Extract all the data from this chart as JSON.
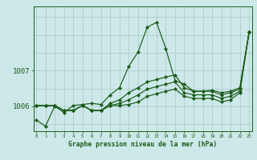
{
  "background_color": "#cde8e8",
  "grid_color": "#a8c8c8",
  "line_color": "#1a5c1a",
  "marker_color": "#1a5c1a",
  "xlabel": "Graphe pression niveau de la mer (hPa)",
  "yticks": [
    1006,
    1007
  ],
  "xlim": [
    -0.3,
    23.3
  ],
  "ylim": [
    1005.3,
    1008.8
  ],
  "series": [
    [
      1005.62,
      1005.44,
      1006.0,
      1005.82,
      1006.02,
      1006.05,
      1006.08,
      1006.05,
      1006.32,
      1006.52,
      1007.12,
      1007.52,
      1008.22,
      1008.35,
      1007.62,
      1006.72,
      1006.62,
      1006.42,
      1006.42,
      1006.45,
      1006.38,
      1006.42,
      1006.52,
      1008.08
    ],
    [
      1006.02,
      1006.02,
      1006.02,
      1005.88,
      1005.88,
      1006.02,
      1005.88,
      1005.88,
      1006.08,
      1006.18,
      1006.38,
      1006.52,
      1006.68,
      1006.75,
      1006.82,
      1006.88,
      1006.52,
      1006.42,
      1006.42,
      1006.42,
      1006.32,
      1006.38,
      1006.48,
      1008.08
    ],
    [
      1006.02,
      1006.02,
      1006.02,
      1005.88,
      1005.88,
      1006.02,
      1005.88,
      1005.88,
      1006.02,
      1006.08,
      1006.18,
      1006.32,
      1006.48,
      1006.55,
      1006.62,
      1006.68,
      1006.38,
      1006.32,
      1006.32,
      1006.32,
      1006.22,
      1006.28,
      1006.42,
      1008.08
    ],
    [
      1006.02,
      1006.02,
      1006.02,
      1005.88,
      1005.88,
      1006.02,
      1005.88,
      1005.88,
      1006.02,
      1006.02,
      1006.05,
      1006.12,
      1006.28,
      1006.35,
      1006.42,
      1006.48,
      1006.28,
      1006.22,
      1006.22,
      1006.22,
      1006.12,
      1006.18,
      1006.38,
      1008.08
    ]
  ]
}
